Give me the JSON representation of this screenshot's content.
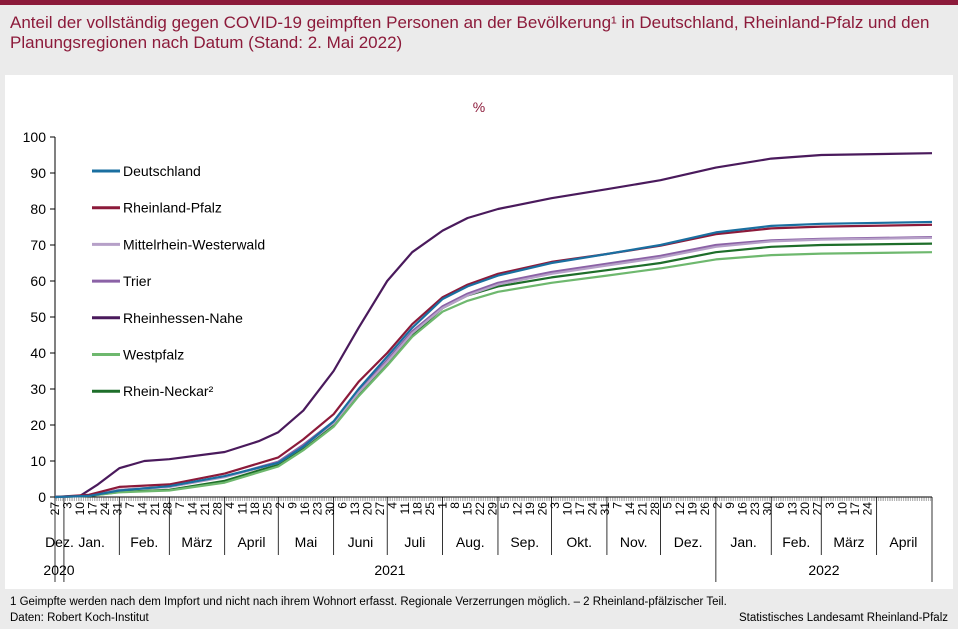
{
  "header": {
    "title": "Anteil der vollständig gegen COVID-19 geimpften Personen an der Bevölkerung¹ in Deutschland, Rheinland-Pfalz und den Planungsregionen nach Datum (Stand: 2. Mai 2022)"
  },
  "footer": {
    "footnote": "1 Geimpfte werden nach dem Impfort und nicht nach ihrem Wohnort erfasst. Regionale Verzerrungen möglich. – 2 Rheinland-pfälzischer Teil.",
    "source": "Daten: Robert Koch-Institut",
    "publisher": "Statistisches Landesamt Rheinland-Pfalz"
  },
  "chart_data": {
    "type": "line",
    "unit_label": "%",
    "ylim": [
      0,
      100
    ],
    "yticks": [
      0,
      10,
      20,
      30,
      40,
      50,
      60,
      70,
      80,
      90,
      100
    ],
    "grid": false,
    "legend_position": "top-left",
    "x_range": [
      "2020-12-27",
      "2022-05-02"
    ],
    "day_tick_labels": [
      "27",
      "3",
      "10",
      "17",
      "24",
      "31",
      "7",
      "14",
      "21",
      "28",
      "7",
      "14",
      "21",
      "28",
      "4",
      "11",
      "18",
      "25",
      "2",
      "9",
      "16",
      "23",
      "30",
      "6",
      "13",
      "20",
      "27",
      "4",
      "11",
      "18",
      "25",
      "1",
      "8",
      "15",
      "22",
      "29",
      "5",
      "12",
      "19",
      "26",
      "3",
      "10",
      "17",
      "24",
      "31",
      "7",
      "14",
      "21",
      "28",
      "5",
      "12",
      "19",
      "26",
      "2",
      "9",
      "16",
      "23",
      "30",
      "6",
      "13",
      "20",
      "27",
      "3",
      "10",
      "17",
      "24"
    ],
    "months": [
      {
        "label": "Dez.",
        "start": "2020-12-27",
        "end": "2021-01-01"
      },
      {
        "label": "Jan.",
        "start": "2021-01-01",
        "end": "2021-02-01"
      },
      {
        "label": "Feb.",
        "start": "2021-02-01",
        "end": "2021-03-01"
      },
      {
        "label": "März",
        "start": "2021-03-01",
        "end": "2021-04-01"
      },
      {
        "label": "April",
        "start": "2021-04-01",
        "end": "2021-05-01"
      },
      {
        "label": "Mai",
        "start": "2021-05-01",
        "end": "2021-06-01"
      },
      {
        "label": "Juni",
        "start": "2021-06-01",
        "end": "2021-07-01"
      },
      {
        "label": "Juli",
        "start": "2021-07-01",
        "end": "2021-08-01"
      },
      {
        "label": "Aug.",
        "start": "2021-08-01",
        "end": "2021-09-01"
      },
      {
        "label": "Sep.",
        "start": "2021-09-01",
        "end": "2021-10-01"
      },
      {
        "label": "Okt.",
        "start": "2021-10-01",
        "end": "2021-11-01"
      },
      {
        "label": "Nov.",
        "start": "2021-11-01",
        "end": "2021-12-01"
      },
      {
        "label": "Dez.",
        "start": "2021-12-01",
        "end": "2022-01-01"
      },
      {
        "label": "Jan.",
        "start": "2022-01-01",
        "end": "2022-02-01"
      },
      {
        "label": "Feb.",
        "start": "2022-02-01",
        "end": "2022-03-01"
      },
      {
        "label": "März",
        "start": "2022-03-01",
        "end": "2022-04-01"
      },
      {
        "label": "April",
        "start": "2022-04-01",
        "end": "2022-05-01"
      }
    ],
    "years": [
      {
        "label": "2020",
        "start": "2020-12-27",
        "end": "2021-01-01"
      },
      {
        "label": "2021",
        "start": "2021-01-01",
        "end": "2022-01-01"
      },
      {
        "label": "2022",
        "start": "2022-01-01",
        "end": "2022-05-02"
      }
    ],
    "series": [
      {
        "name": "Deutschland",
        "color": "#1a6fa0",
        "points": [
          [
            "2020-12-27",
            0
          ],
          [
            "2021-01-15",
            0.3
          ],
          [
            "2021-02-01",
            1.8
          ],
          [
            "2021-03-01",
            3.0
          ],
          [
            "2021-04-01",
            5.8
          ],
          [
            "2021-05-01",
            9.5
          ],
          [
            "2021-05-15",
            14
          ],
          [
            "2021-06-01",
            21
          ],
          [
            "2021-06-15",
            30
          ],
          [
            "2021-07-01",
            39
          ],
          [
            "2021-07-15",
            47
          ],
          [
            "2021-08-01",
            55
          ],
          [
            "2021-08-15",
            58.5
          ],
          [
            "2021-09-01",
            61.5
          ],
          [
            "2021-10-01",
            65
          ],
          [
            "2021-11-01",
            67.5
          ],
          [
            "2021-12-01",
            70
          ],
          [
            "2022-01-01",
            73.5
          ],
          [
            "2022-02-01",
            75.3
          ],
          [
            "2022-03-01",
            75.9
          ],
          [
            "2022-05-02",
            76.4
          ]
        ]
      },
      {
        "name": "Rheinland-Pfalz",
        "color": "#8c1a3a",
        "points": [
          [
            "2020-12-27",
            0
          ],
          [
            "2021-01-15",
            0.6
          ],
          [
            "2021-02-01",
            2.8
          ],
          [
            "2021-03-01",
            3.5
          ],
          [
            "2021-04-01",
            6.5
          ],
          [
            "2021-05-01",
            11
          ],
          [
            "2021-05-15",
            16
          ],
          [
            "2021-06-01",
            23
          ],
          [
            "2021-06-15",
            32
          ],
          [
            "2021-07-01",
            40
          ],
          [
            "2021-07-15",
            48
          ],
          [
            "2021-08-01",
            55.5
          ],
          [
            "2021-08-15",
            59
          ],
          [
            "2021-09-01",
            62
          ],
          [
            "2021-10-01",
            65.3
          ],
          [
            "2021-11-01",
            67.5
          ],
          [
            "2021-12-01",
            69.8
          ],
          [
            "2022-01-01",
            73
          ],
          [
            "2022-02-01",
            74.6
          ],
          [
            "2022-03-01",
            75.1
          ],
          [
            "2022-05-02",
            75.6
          ]
        ]
      },
      {
        "name": "Mittelrhein-Westerwald",
        "color": "#b6a0c8",
        "points": [
          [
            "2020-12-27",
            0
          ],
          [
            "2021-01-15",
            0.4
          ],
          [
            "2021-02-01",
            2.0
          ],
          [
            "2021-03-01",
            2.8
          ],
          [
            "2021-04-01",
            5.5
          ],
          [
            "2021-05-01",
            9.5
          ],
          [
            "2021-05-15",
            14
          ],
          [
            "2021-06-01",
            20.5
          ],
          [
            "2021-06-15",
            29
          ],
          [
            "2021-07-01",
            37.5
          ],
          [
            "2021-07-15",
            45.5
          ],
          [
            "2021-08-01",
            52.5
          ],
          [
            "2021-08-15",
            56
          ],
          [
            "2021-09-01",
            59
          ],
          [
            "2021-10-01",
            62
          ],
          [
            "2021-11-01",
            64.3
          ],
          [
            "2021-12-01",
            66.5
          ],
          [
            "2022-01-01",
            69.5
          ],
          [
            "2022-02-01",
            71
          ],
          [
            "2022-03-01",
            71.5
          ],
          [
            "2022-05-02",
            72
          ]
        ]
      },
      {
        "name": "Trier",
        "color": "#8b62a6",
        "points": [
          [
            "2020-12-27",
            0
          ],
          [
            "2021-01-15",
            0.4
          ],
          [
            "2021-02-01",
            2.0
          ],
          [
            "2021-03-01",
            2.8
          ],
          [
            "2021-04-01",
            5.6
          ],
          [
            "2021-05-01",
            9.8
          ],
          [
            "2021-05-15",
            14.5
          ],
          [
            "2021-06-01",
            21
          ],
          [
            "2021-06-15",
            29.5
          ],
          [
            "2021-07-01",
            38
          ],
          [
            "2021-07-15",
            46
          ],
          [
            "2021-08-01",
            53
          ],
          [
            "2021-08-15",
            56.5
          ],
          [
            "2021-09-01",
            59.5
          ],
          [
            "2021-10-01",
            62.5
          ],
          [
            "2021-11-01",
            64.8
          ],
          [
            "2021-12-01",
            67
          ],
          [
            "2022-01-01",
            70
          ],
          [
            "2022-02-01",
            71.3
          ],
          [
            "2022-03-01",
            71.7
          ],
          [
            "2022-05-02",
            72.2
          ]
        ]
      },
      {
        "name": "Rheinhessen-Nahe",
        "color": "#4a1a5c",
        "points": [
          [
            "2020-12-27",
            0
          ],
          [
            "2021-01-10",
            0.3
          ],
          [
            "2021-01-20",
            3.5
          ],
          [
            "2021-02-01",
            8
          ],
          [
            "2021-02-15",
            10
          ],
          [
            "2021-03-01",
            10.5
          ],
          [
            "2021-04-01",
            12.5
          ],
          [
            "2021-04-20",
            15.5
          ],
          [
            "2021-05-01",
            18
          ],
          [
            "2021-05-15",
            24
          ],
          [
            "2021-06-01",
            35
          ],
          [
            "2021-06-15",
            47
          ],
          [
            "2021-07-01",
            60
          ],
          [
            "2021-07-15",
            68
          ],
          [
            "2021-08-01",
            74
          ],
          [
            "2021-08-15",
            77.5
          ],
          [
            "2021-09-01",
            80
          ],
          [
            "2021-10-01",
            83
          ],
          [
            "2021-11-01",
            85.5
          ],
          [
            "2021-12-01",
            88
          ],
          [
            "2022-01-01",
            91.5
          ],
          [
            "2022-02-01",
            94
          ],
          [
            "2022-03-01",
            95
          ],
          [
            "2022-05-02",
            95.5
          ]
        ]
      },
      {
        "name": "Westpfalz",
        "color": "#6eb86e",
        "points": [
          [
            "2020-12-27",
            0
          ],
          [
            "2021-01-15",
            0.3
          ],
          [
            "2021-02-01",
            1.3
          ],
          [
            "2021-03-01",
            1.8
          ],
          [
            "2021-04-01",
            4
          ],
          [
            "2021-05-01",
            8.5
          ],
          [
            "2021-05-15",
            13
          ],
          [
            "2021-06-01",
            19.5
          ],
          [
            "2021-06-15",
            28
          ],
          [
            "2021-07-01",
            36.5
          ],
          [
            "2021-07-15",
            44.5
          ],
          [
            "2021-08-01",
            51.5
          ],
          [
            "2021-08-15",
            54.5
          ],
          [
            "2021-09-01",
            57
          ],
          [
            "2021-10-01",
            59.5
          ],
          [
            "2021-11-01",
            61.5
          ],
          [
            "2021-12-01",
            63.5
          ],
          [
            "2022-01-01",
            66
          ],
          [
            "2022-02-01",
            67.2
          ],
          [
            "2022-03-01",
            67.6
          ],
          [
            "2022-05-02",
            68
          ]
        ]
      },
      {
        "name": "Rhein-Neckar²",
        "color": "#1e6e2a",
        "points": [
          [
            "2020-12-27",
            0
          ],
          [
            "2021-01-15",
            0.3
          ],
          [
            "2021-02-01",
            1.4
          ],
          [
            "2021-03-01",
            2
          ],
          [
            "2021-04-01",
            4.5
          ],
          [
            "2021-05-01",
            9
          ],
          [
            "2021-05-15",
            13.5
          ],
          [
            "2021-06-01",
            20
          ],
          [
            "2021-06-15",
            28.5
          ],
          [
            "2021-07-01",
            37
          ],
          [
            "2021-07-15",
            45
          ],
          [
            "2021-08-01",
            52.5
          ],
          [
            "2021-08-15",
            56
          ],
          [
            "2021-09-01",
            58.5
          ],
          [
            "2021-10-01",
            61
          ],
          [
            "2021-11-01",
            63
          ],
          [
            "2021-12-01",
            65
          ],
          [
            "2022-01-01",
            68
          ],
          [
            "2022-02-01",
            69.5
          ],
          [
            "2022-03-01",
            70
          ],
          [
            "2022-05-02",
            70.4
          ]
        ]
      }
    ]
  }
}
